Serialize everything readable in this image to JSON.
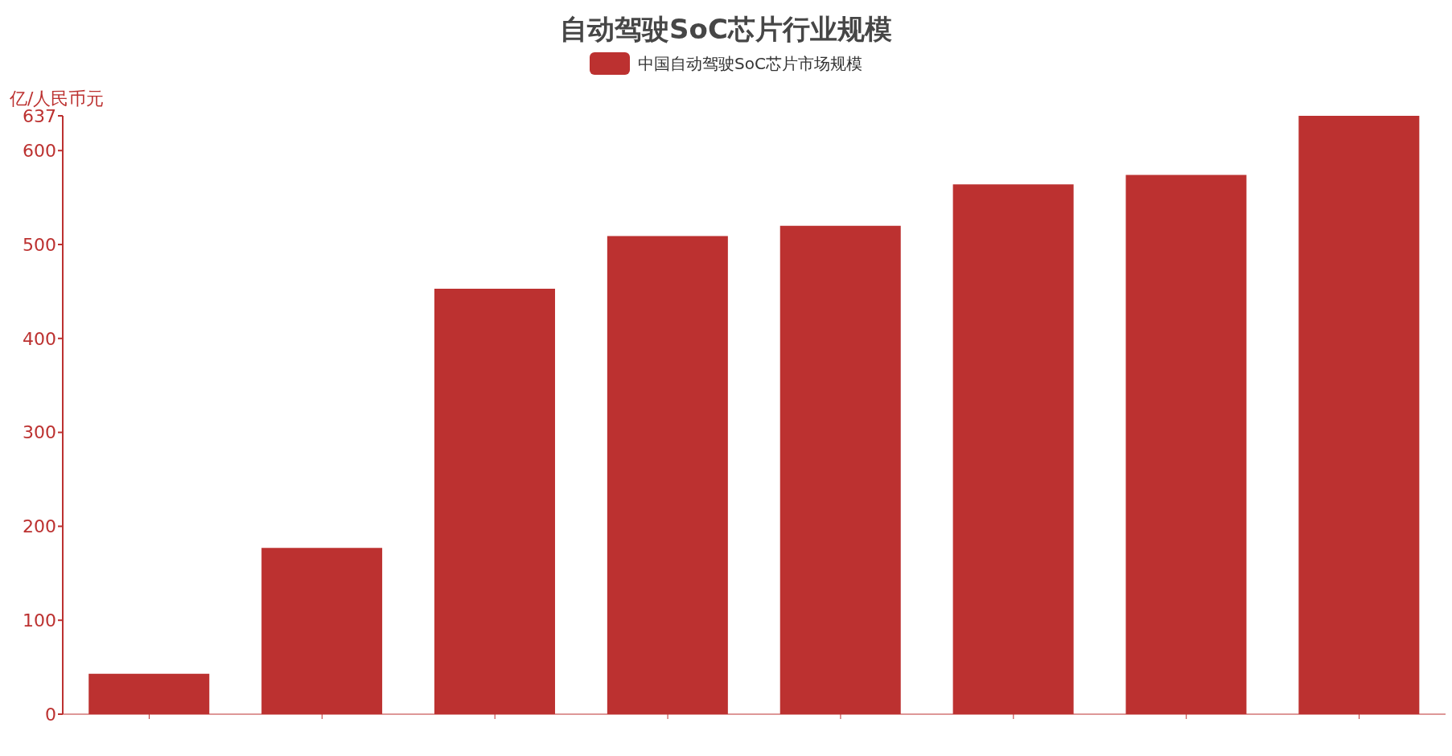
{
  "chart_data": {
    "type": "bar",
    "title": "自动驾驶SoC芯片行业规模",
    "ylabel": "亿/人民币元",
    "categories": [
      null,
      null,
      null,
      null,
      null,
      null,
      null,
      null
    ],
    "series": [
      {
        "name": "中国自动驾驶SoC芯片市场规模",
        "color": "#bc3130",
        "values": [
          43,
          177,
          453,
          509,
          520,
          564,
          574,
          637
        ]
      }
    ],
    "ylim": [
      0,
      637
    ],
    "yticks": [
      0,
      100,
      200,
      300,
      400,
      500,
      600,
      637
    ],
    "grid": false,
    "legend": "top"
  }
}
